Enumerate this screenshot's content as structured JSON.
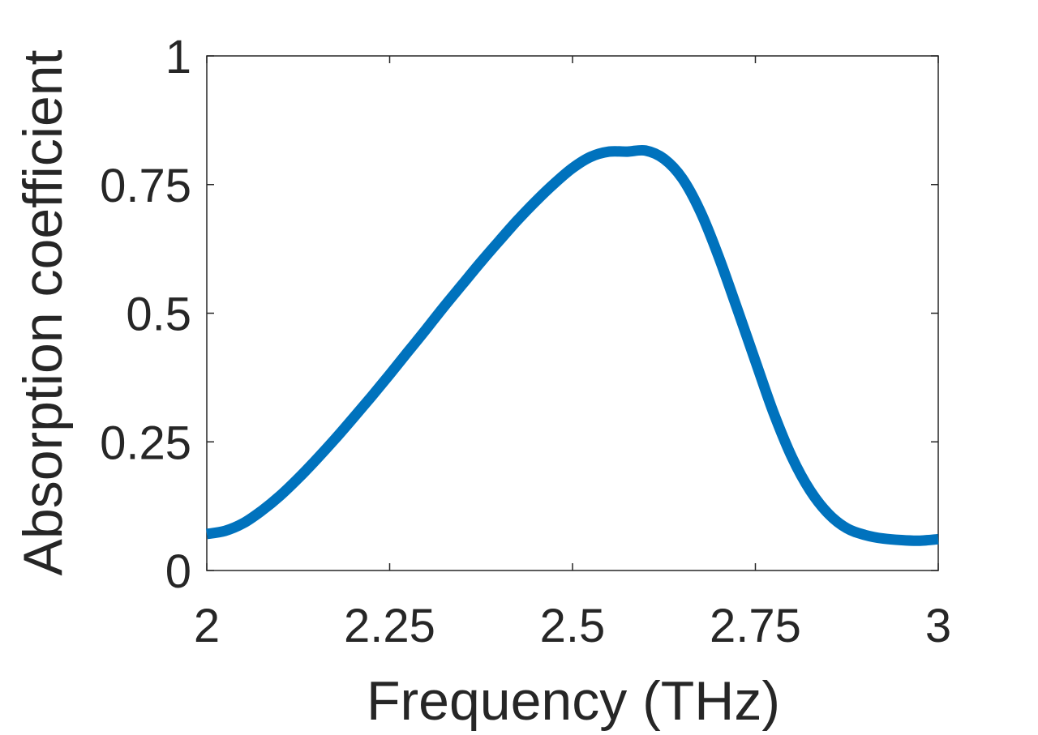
{
  "chart_data": {
    "type": "line",
    "title": "",
    "xlabel": "Frequency (THz)",
    "ylabel": "Absorption coefficient",
    "xlim": [
      2,
      3
    ],
    "ylim": [
      0,
      1
    ],
    "grid": false,
    "box": true,
    "x_ticks": [
      2,
      2.25,
      2.5,
      2.75,
      3
    ],
    "x_tick_labels": [
      "2",
      "2.25",
      "2.5",
      "2.75",
      "3"
    ],
    "y_ticks": [
      0,
      0.25,
      0.5,
      0.75,
      1
    ],
    "y_tick_labels": [
      "0",
      "0.25",
      "0.5",
      "0.75",
      "1"
    ],
    "series": [
      {
        "color": "#0072bd",
        "x": [
          2.0,
          2.025,
          2.05,
          2.075,
          2.1,
          2.125,
          2.15,
          2.175,
          2.2,
          2.225,
          2.25,
          2.275,
          2.3,
          2.325,
          2.35,
          2.375,
          2.4,
          2.425,
          2.45,
          2.475,
          2.5,
          2.525,
          2.55,
          2.575,
          2.6,
          2.625,
          2.65,
          2.675,
          2.7,
          2.725,
          2.75,
          2.775,
          2.8,
          2.825,
          2.85,
          2.875,
          2.9,
          2.925,
          2.95,
          2.975,
          3.0
        ],
        "y": [
          0.071,
          0.077,
          0.092,
          0.116,
          0.145,
          0.179,
          0.216,
          0.255,
          0.296,
          0.338,
          0.381,
          0.425,
          0.469,
          0.514,
          0.557,
          0.6,
          0.641,
          0.681,
          0.718,
          0.752,
          0.782,
          0.804,
          0.814,
          0.814,
          0.816,
          0.8,
          0.762,
          0.697,
          0.609,
          0.509,
          0.407,
          0.306,
          0.22,
          0.155,
          0.11,
          0.082,
          0.069,
          0.062,
          0.059,
          0.058,
          0.061
        ]
      }
    ]
  }
}
